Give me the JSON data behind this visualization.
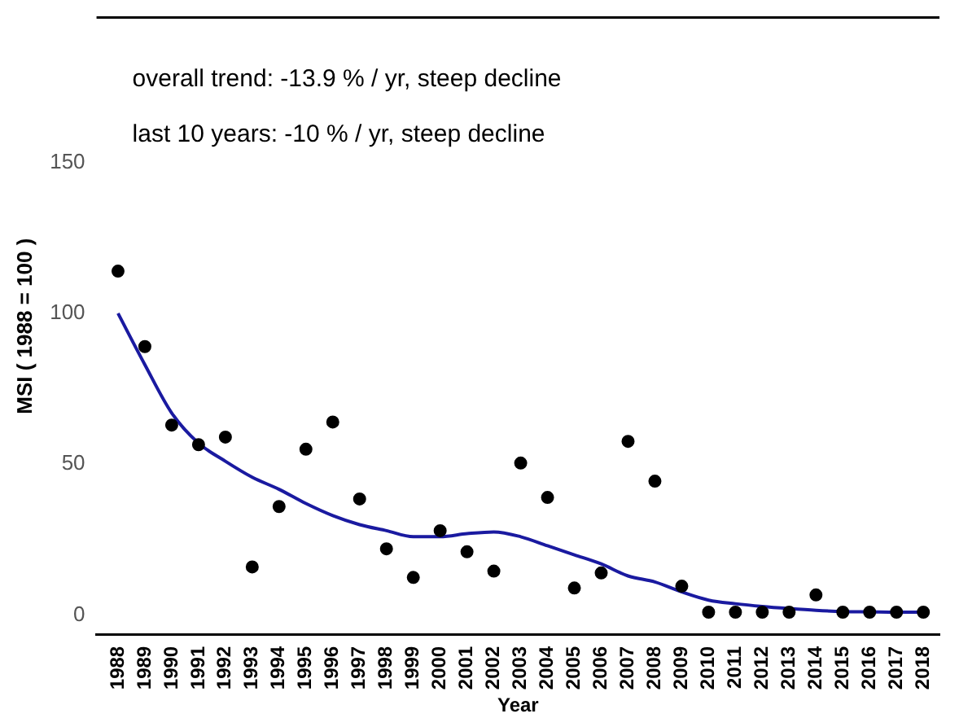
{
  "chart_data": {
    "type": "scatter",
    "xlabel": "Year",
    "ylabel": "MSI ( 1988 = 100 )",
    "categories": [
      "1988",
      "1989",
      "1990",
      "1991",
      "1992",
      "1993",
      "1994",
      "1995",
      "1996",
      "1997",
      "1998",
      "1999",
      "2000",
      "2001",
      "2002",
      "2003",
      "2004",
      "2005",
      "2006",
      "2007",
      "2008",
      "2009",
      "2010",
      "2011",
      "2012",
      "2013",
      "2014",
      "2015",
      "2016",
      "2017",
      "2018"
    ],
    "series": [
      {
        "type": "scatter",
        "color": "#000000",
        "marker": "circle",
        "values": [
          114,
          89,
          63,
          56.5,
          59,
          16,
          36,
          55,
          64,
          38.5,
          22,
          12.5,
          28,
          21,
          14.6,
          50.4,
          39,
          9,
          14,
          57.6,
          44.4,
          9.6,
          1,
          1,
          1,
          1,
          6.7,
          1,
          1,
          1,
          1
        ]
      },
      {
        "type": "line",
        "color": "#1a1aa0",
        "marker": "none",
        "line_style": "solid",
        "values": [
          100,
          83,
          67,
          57,
          51,
          45.7,
          41.7,
          37,
          33,
          30,
          28,
          26,
          26,
          27,
          27.6,
          26,
          23,
          20,
          17,
          13,
          11,
          7.7,
          5,
          3.8,
          2.9,
          2.2,
          1.6,
          1.2,
          1.1,
          1,
          1
        ]
      }
    ],
    "ylim": [
      -6.5,
      198
    ],
    "yticks": [
      0,
      50,
      100,
      150
    ],
    "grid": false,
    "legend": false,
    "annotations": [
      "overall trend: -13.9 % / yr, steep decline",
      "last 10 years: -10 % / yr, steep decline"
    ]
  }
}
